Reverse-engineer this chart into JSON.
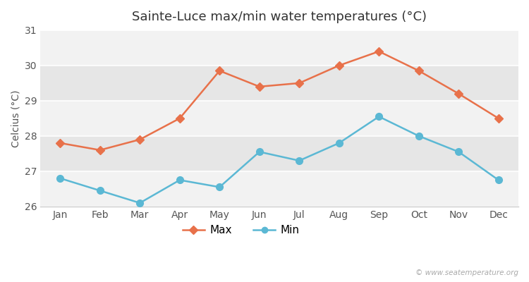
{
  "title": "Sainte-Luce max/min water temperatures (°C)",
  "ylabel": "Celcius (°C)",
  "months": [
    "Jan",
    "Feb",
    "Mar",
    "Apr",
    "May",
    "Jun",
    "Jul",
    "Aug",
    "Sep",
    "Oct",
    "Nov",
    "Dec"
  ],
  "max_values": [
    27.8,
    27.6,
    27.9,
    28.5,
    29.85,
    29.4,
    29.5,
    30.0,
    30.4,
    29.85,
    29.2,
    28.5
  ],
  "min_values": [
    26.8,
    26.45,
    26.1,
    26.75,
    26.55,
    27.55,
    27.3,
    27.8,
    28.55,
    28.0,
    27.55,
    26.75
  ],
  "max_color": "#e8714a",
  "min_color": "#5bb8d4",
  "bg_color": "#ffffff",
  "stripe_light": "#f2f2f2",
  "stripe_dark": "#e6e6e6",
  "ylim": [
    26.0,
    31.0
  ],
  "yticks": [
    26,
    27,
    28,
    29,
    30,
    31
  ],
  "watermark": "© www.seatemperature.org",
  "max_marker": "D",
  "min_marker": "o",
  "markersize_max": 6,
  "markersize_min": 7,
  "linewidth": 1.8,
  "legend_labels": [
    "Max",
    "Min"
  ]
}
